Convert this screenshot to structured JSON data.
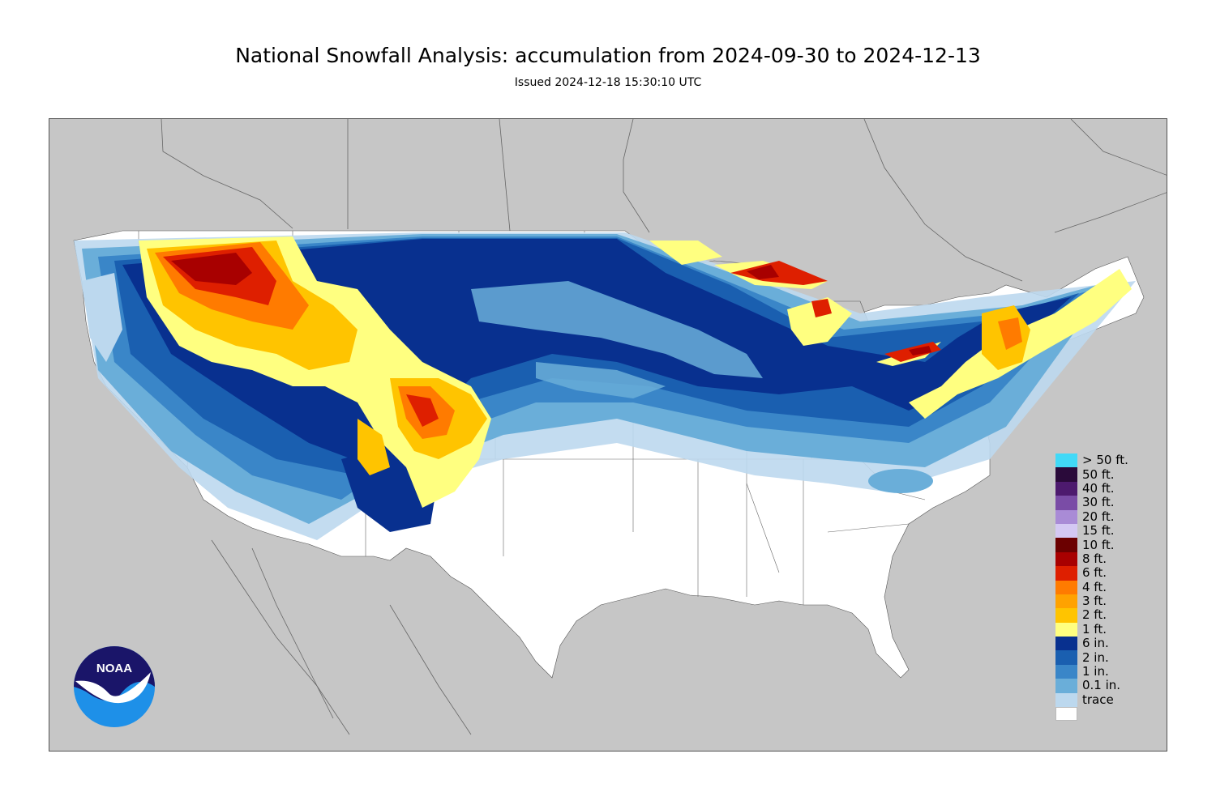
{
  "title": "National Snowfall Analysis: accumulation from 2024-09-30 to 2024-12-13",
  "subtitle": "Issued 2024-12-18 15:30:10 UTC",
  "logo": {
    "text": "NOAA",
    "icon": "noaa-logo"
  },
  "colors": {
    "land_outside": "#c6c6c6",
    "no_snow": "#ffffff",
    "border": "#555555"
  },
  "legend": {
    "items": [
      {
        "label": "> 50 ft.",
        "color": "#41d9f7"
      },
      {
        "label": "50 ft.",
        "color": "#2a0a3a"
      },
      {
        "label": "40 ft.",
        "color": "#4d1a6e"
      },
      {
        "label": "30 ft.",
        "color": "#7a4ca6"
      },
      {
        "label": "20 ft.",
        "color": "#a98bd6"
      },
      {
        "label": "15 ft.",
        "color": "#d4c8f3"
      },
      {
        "label": "10 ft.",
        "color": "#6b0000"
      },
      {
        "label": "8 ft.",
        "color": "#a80000"
      },
      {
        "label": "6 ft.",
        "color": "#de1f00"
      },
      {
        "label": "4 ft.",
        "color": "#ff7b00"
      },
      {
        "label": "3 ft.",
        "color": "#ffa200"
      },
      {
        "label": "2 ft.",
        "color": "#ffc400"
      },
      {
        "label": "1 ft.",
        "color": "#ffff80"
      },
      {
        "label": "6 in.",
        "color": "#08308f"
      },
      {
        "label": "2 in.",
        "color": "#1a5fb0"
      },
      {
        "label": "1 in.",
        "color": "#3a86c8"
      },
      {
        "label": "0.1 in.",
        "color": "#6aaed9"
      },
      {
        "label": "trace",
        "color": "#bcd8ee"
      },
      {
        "label": "",
        "color": "#ffffff"
      }
    ]
  }
}
